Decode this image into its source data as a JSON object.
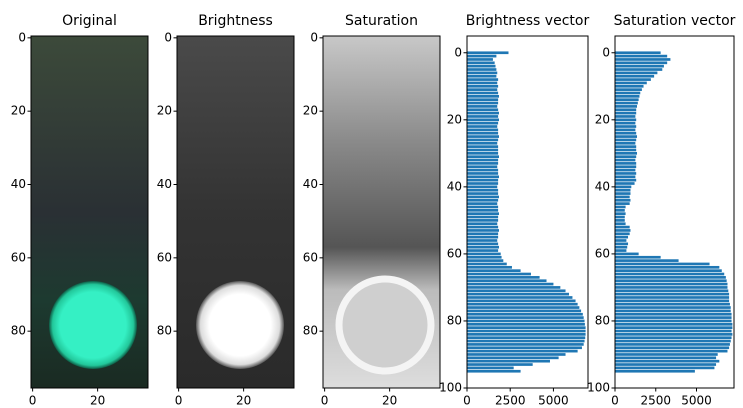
{
  "chart_data": [
    {
      "type": "image",
      "title": "Original",
      "xlim": [
        -0.5,
        35.5
      ],
      "ylim": [
        95.5,
        -0.5
      ],
      "xticks": [
        0,
        20
      ],
      "yticks": [
        0,
        20,
        40,
        60,
        80
      ]
    },
    {
      "type": "image",
      "title": "Brightness",
      "xlim": [
        -0.5,
        35.5
      ],
      "ylim": [
        95.5,
        -0.5
      ],
      "xticks": [
        0,
        20
      ],
      "yticks": [
        0,
        20,
        40,
        60,
        80
      ]
    },
    {
      "type": "image",
      "title": "Saturation",
      "xlim": [
        -0.5,
        35.5
      ],
      "ylim": [
        95.5,
        -0.5
      ],
      "xticks": [
        0,
        20
      ],
      "yticks": [
        0,
        20,
        40,
        60,
        80
      ]
    },
    {
      "type": "barh",
      "title": "Brightness vector",
      "color": "#1f77b4",
      "xlim": [
        0,
        7000
      ],
      "ylim": [
        100,
        -5
      ],
      "xticks": [
        0,
        2500,
        5000
      ],
      "yticks": [
        0,
        20,
        40,
        60,
        80,
        100
      ],
      "values": [
        2400,
        1700,
        1500,
        1600,
        1650,
        1700,
        1750,
        1700,
        1800,
        1750,
        1800,
        1750,
        1800,
        1850,
        1800,
        1800,
        1750,
        1800,
        1850,
        1800,
        1850,
        1800,
        1750,
        1800,
        1800,
        1850,
        1800,
        1750,
        1800,
        1800,
        1800,
        1850,
        1800,
        1800,
        1750,
        1800,
        1800,
        1850,
        1800,
        1800,
        1750,
        1800,
        1800,
        1850,
        1800,
        1750,
        1800,
        1800,
        1850,
        1800,
        1800,
        1750,
        1800,
        1850,
        1800,
        1800,
        1750,
        1800,
        1850,
        1800,
        1950,
        2000,
        2100,
        2300,
        2600,
        3100,
        3700,
        4200,
        4600,
        5000,
        5400,
        5700,
        5900,
        6100,
        6280,
        6400,
        6500,
        6600,
        6700,
        6750,
        6800,
        6820,
        6860,
        6860,
        6860,
        6840,
        6800,
        6750,
        6650,
        6400,
        5700,
        5300,
        4800,
        3800,
        2700,
        3100
      ]
    },
    {
      "type": "barh",
      "title": "Saturation vector",
      "color": "#1f77b4",
      "xlim": [
        0,
        7300
      ],
      "ylim": [
        100,
        -5
      ],
      "xticks": [
        0,
        2500,
        5000
      ],
      "yticks": [
        0,
        20,
        40,
        60,
        80,
        100
      ],
      "values": [
        2800,
        3200,
        3400,
        3200,
        3000,
        2900,
        2600,
        2400,
        2200,
        1950,
        1750,
        1650,
        1550,
        1500,
        1450,
        1400,
        1350,
        1300,
        1300,
        1250,
        1300,
        1250,
        1300,
        1250,
        1300,
        1350,
        1300,
        1250,
        1300,
        1300,
        1350,
        1300,
        1250,
        1300,
        1300,
        1250,
        1300,
        1250,
        1300,
        1200,
        1000,
        950,
        950,
        900,
        950,
        900,
        650,
        600,
        650,
        600,
        600,
        650,
        900,
        950,
        900,
        800,
        700,
        800,
        750,
        700,
        1450,
        2800,
        3900,
        5800,
        6400,
        6550,
        6700,
        6800,
        6850,
        6900,
        6900,
        6950,
        7000,
        7000,
        7000,
        7050,
        7100,
        7100,
        7150,
        7150,
        7150,
        7200,
        7200,
        7150,
        7200,
        7150,
        7100,
        7050,
        7000,
        6900,
        6300,
        6200,
        6400,
        6200,
        6100,
        4900
      ]
    }
  ]
}
